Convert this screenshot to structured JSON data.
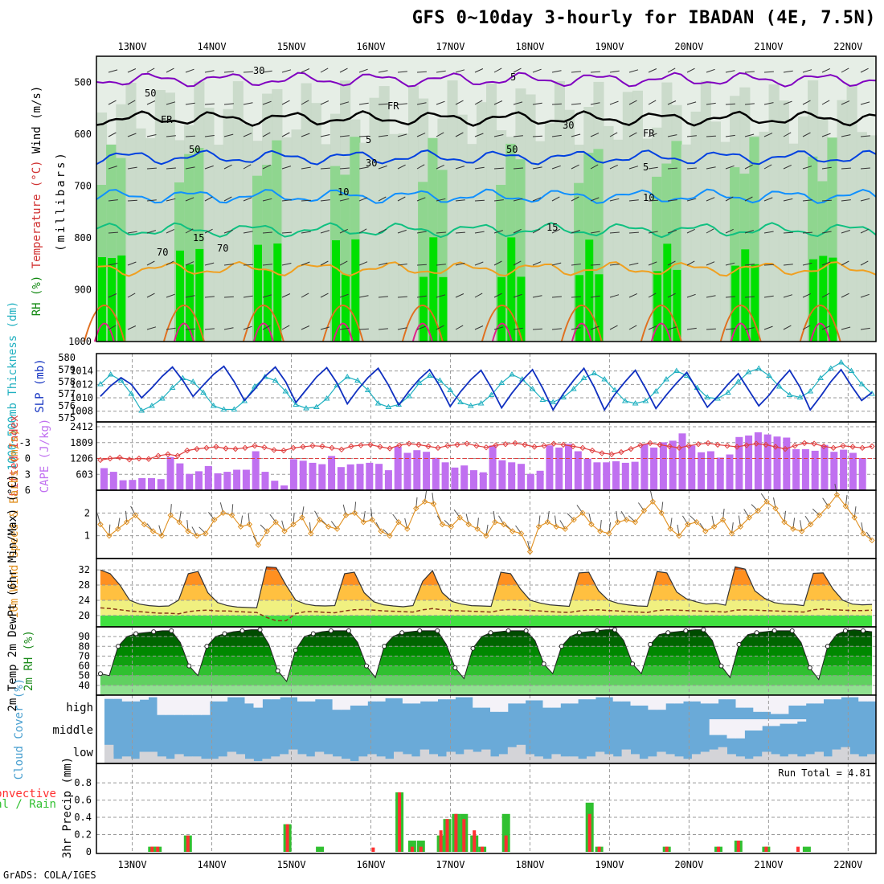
{
  "title": "GFS 0~10day 3-hourly for IBADAN (4E, 7.5N)",
  "credit": "GrADS: COLA/IGES",
  "colors": {
    "frame": "#000000",
    "grid": "#9a9a9a",
    "rh_light": "#c8d8c8",
    "rh_mid": "#8fd68f",
    "rh_high": "#00e000",
    "freeze": "#000000",
    "temp_5": "#8000c0",
    "temp_5b": "#0040e0",
    "temp_10": "#1090ff",
    "temp_15": "#10c080",
    "temp_20": "#f0a020",
    "thickness": "#20b0c0",
    "slp": "#1030c0",
    "lifted": "#e04040",
    "cape": "#c070f0",
    "wind10": "#e09020",
    "temp2m": "#ff6a00",
    "rh2m": "#1a8a1a",
    "cloud": "#6aaad8",
    "precip_total": "#30c030",
    "precip_conv": "#ff3030"
  },
  "chart_data": [
    {
      "type": "heatmap",
      "name": "upper-air cross-section",
      "dates": [
        "13NOV",
        "14NOV",
        "15NOV",
        "16NOV",
        "17NOV",
        "18NOV",
        "19NOV",
        "20NOV",
        "21NOV",
        "22NOV"
      ],
      "ylabel_main": "(millibars)",
      "ylabel_parts": {
        "rh": "RH (%)",
        "temp": "Temperature (°C)",
        "wind": "Wind (m/s)"
      },
      "y_ticks": [
        500,
        600,
        700,
        800,
        900,
        1000
      ],
      "ylim": [
        450,
        1000
      ],
      "contour_labels": [
        "5",
        "FR",
        "FR",
        "FR",
        "5",
        "5",
        "10",
        "10",
        "15",
        "15",
        "30",
        "30",
        "30",
        "50",
        "50",
        "50",
        "70",
        "70"
      ],
      "isotherm_levels": {
        "5_upper": 495,
        "FR": 570,
        "5": 645,
        "10": 720,
        "15": 785,
        "20": 860
      }
    },
    {
      "type": "line",
      "name": "thickness and slp",
      "ylabel_left": "1000~500mb Thickness (dm)",
      "ylabel_right": "SLP (mb)",
      "left_ticks": [
        575,
        576,
        577,
        578,
        579,
        580
      ],
      "right_ticks": [
        1008,
        1010,
        1012,
        1014
      ],
      "thickness_series": [
        577.8,
        578.6,
        578.1,
        577.0,
        575.6,
        576.0,
        576.6,
        577.5,
        578.3,
        578.0,
        577.1,
        576.0,
        575.7,
        575.7,
        576.4,
        577.6,
        578.4,
        578.1,
        577.2,
        576.1,
        575.8,
        575.9,
        576.6,
        577.7,
        578.4,
        578.1,
        577.3,
        576.2,
        575.9,
        576.1,
        576.8,
        577.9,
        578.5,
        578.1,
        577.3,
        576.3,
        576.0,
        576.2,
        576.9,
        577.9,
        578.6,
        578.2,
        577.4,
        576.5,
        576.3,
        576.7,
        577.4,
        578.3,
        578.7,
        578.2,
        577.3,
        576.4,
        576.2,
        576.4,
        577.2,
        578.2,
        578.9,
        578.5,
        577.5,
        576.7,
        576.6,
        577.1,
        578.0,
        578.8,
        579.1,
        578.5,
        577.6,
        576.9,
        576.7,
        577.2,
        578.3,
        579.1,
        579.6,
        578.9,
        577.8,
        577.0
      ],
      "slp_series": [
        1010.2,
        1011.8,
        1013.0,
        1012.0,
        1010.0,
        1011.5,
        1013.2,
        1014.6,
        1012.6,
        1010.2,
        1011.9,
        1013.5,
        1014.7,
        1012.4,
        1009.6,
        1011.3,
        1013.2,
        1014.6,
        1012.4,
        1009.3,
        1011.2,
        1013.1,
        1014.5,
        1012.2,
        1009.1,
        1011.2,
        1013.0,
        1014.4,
        1011.9,
        1008.9,
        1011.0,
        1012.8,
        1014.2,
        1011.7,
        1008.7,
        1010.9,
        1012.7,
        1014.1,
        1011.5,
        1008.5,
        1010.7,
        1012.6,
        1014.2,
        1011.4,
        1008.2,
        1010.6,
        1012.6,
        1014.4,
        1011.6,
        1008.2,
        1010.5,
        1012.4,
        1014.1,
        1011.4,
        1008.4,
        1010.4,
        1012.2,
        1013.8,
        1011.2,
        1008.6,
        1010.2,
        1012.0,
        1013.6,
        1011.2,
        1008.8,
        1010.4,
        1012.4,
        1014.1,
        1011.6,
        1008.2,
        1010.2,
        1012.4,
        1014.2,
        1011.8,
        1009.6,
        1010.8
      ]
    },
    {
      "type": "bar",
      "name": "lifted index and cape",
      "ylabel_left": "Lifted Index",
      "ylabel_right": "CAPE (J/kg)",
      "left_ticks": [
        "-3",
        "0",
        "3",
        "6"
      ],
      "right_ticks": [
        "603",
        "1206",
        "1809",
        "2412"
      ],
      "cape_values": [
        840,
        700,
        380,
        390,
        460,
        460,
        420,
        1260,
        1020,
        620,
        720,
        920,
        640,
        700,
        780,
        780,
        1480,
        700,
        360,
        180,
        1180,
        1120,
        1040,
        990,
        1300,
        880,
        980,
        1000,
        1040,
        1000,
        760,
        1660,
        1420,
        1520,
        1460,
        1230,
        1060,
        860,
        940,
        760,
        680,
        1700,
        1140,
        1060,
        1000,
        620,
        740,
        1700,
        1620,
        1760,
        1480,
        1200,
        1060,
        1060,
        1100,
        1040,
        1080,
        1760,
        1620,
        1820,
        1880,
        2160,
        1700,
        1440,
        1480,
        1240,
        1360,
        2020,
        2080,
        2200,
        2120,
        2040,
        2000,
        1560,
        1560,
        1500,
        1720,
        1460,
        1540,
        1420,
        1220
      ],
      "lifted_index": [
        0.3,
        0.0,
        -0.2,
        0.2,
        0.0,
        0.1,
        -0.5,
        -0.8,
        -0.5,
        -1.5,
        -1.8,
        -2.0,
        -2.2,
        -1.9,
        -1.8,
        -2.0,
        -2.4,
        -2.1,
        -1.6,
        -1.5,
        -2.0,
        -2.2,
        -2.4,
        -2.3,
        -2.0,
        -1.7,
        -2.3,
        -2.5,
        -2.6,
        -2.2,
        -1.9,
        -2.5,
        -2.8,
        -2.6,
        -2.3,
        -2.0,
        -2.4,
        -2.6,
        -2.8,
        -2.4,
        -2.1,
        -2.5,
        -2.7,
        -2.9,
        -2.6,
        -2.2,
        -2.4,
        -2.8,
        -2.6,
        -2.3,
        -2.0,
        -1.5,
        -1.0,
        -0.8,
        -1.2,
        -1.8,
        -2.5,
        -2.9,
        -2.6,
        -2.3,
        -2.0,
        -2.4,
        -2.7,
        -2.9,
        -2.6,
        -2.4,
        -2.2,
        -2.5,
        -2.8,
        -2.6,
        -2.2,
        -1.8,
        -2.4,
        -2.9,
        -2.8,
        -2.3,
        -2.0,
        -2.4,
        -2.2,
        -2.0,
        -2.3
      ]
    },
    {
      "type": "line",
      "name": "10m wind",
      "ylabel": "10m Wind Speed & Barbs (m/s)",
      "ticks": [
        "1",
        "2"
      ],
      "ylim": [
        0.0,
        3.0
      ],
      "values": [
        1.5,
        1.0,
        1.3,
        1.6,
        1.9,
        1.5,
        1.2,
        1.0,
        1.9,
        1.6,
        1.2,
        1.0,
        1.1,
        1.7,
        2.0,
        1.9,
        1.4,
        1.5,
        0.6,
        1.2,
        1.6,
        1.2,
        1.5,
        1.8,
        1.1,
        1.7,
        1.4,
        1.3,
        1.9,
        2.0,
        1.6,
        1.7,
        1.2,
        1.0,
        1.6,
        1.3,
        2.2,
        2.5,
        2.4,
        1.5,
        1.4,
        1.8,
        1.5,
        1.3,
        1.0,
        1.6,
        1.5,
        1.2,
        1.1,
        0.3,
        1.4,
        1.6,
        1.4,
        1.3,
        1.7,
        2.0,
        1.5,
        1.2,
        1.1,
        1.6,
        1.7,
        1.6,
        2.1,
        2.5,
        2.0,
        1.3,
        1.0,
        1.5,
        1.6,
        1.2,
        1.4,
        1.7,
        1.1,
        1.4,
        1.8,
        2.1,
        2.5,
        2.2,
        1.6,
        1.3,
        1.2,
        1.5,
        1.9,
        2.3,
        2.8,
        2.3,
        1.8,
        1.1,
        0.8
      ]
    },
    {
      "type": "area",
      "name": "2m temperature",
      "ylabel": "2m Temp 2m DewPt (6hr Min/Max) (°C)",
      "ticks": [
        "20",
        "24",
        "28",
        "32"
      ],
      "ylim": [
        17,
        35
      ],
      "temp": [
        32,
        31,
        28,
        24,
        23,
        22.6,
        22.4,
        22.5,
        24,
        31,
        31.6,
        26,
        23.4,
        22.6,
        22.2,
        22.1,
        22,
        32.8,
        32.6,
        28,
        24,
        23,
        22.6,
        22.5,
        22.6,
        31,
        31.4,
        26,
        23.6,
        22.8,
        22.5,
        22.3,
        22.6,
        29,
        31.8,
        26,
        23.7,
        23,
        22.6,
        22.5,
        22.4,
        31.4,
        31,
        27,
        24,
        23.3,
        22.8,
        22.6,
        22.4,
        31.2,
        31.4,
        26.5,
        24,
        23.2,
        22.8,
        22.5,
        22.4,
        31.6,
        31.2,
        26.2,
        24.4,
        23.6,
        23,
        23.2,
        22.7,
        32.8,
        32.2,
        26.5,
        24.5,
        23.4,
        23,
        22.9,
        22.6,
        31.1,
        31.2,
        27,
        24,
        23,
        22.8,
        22.9
      ],
      "dewpoint": [
        22,
        21.8,
        21.5,
        21.2,
        21,
        20.8,
        20.6,
        20.6,
        20.4,
        21,
        21.3,
        21.4,
        21.2,
        21.2,
        21,
        20.9,
        20.8,
        19.5,
        18.6,
        18.6,
        20.5,
        21,
        21,
        20.8,
        20.7,
        21.2,
        21.5,
        21.6,
        21.4,
        21.2,
        21.1,
        21.0,
        20.9,
        21.5,
        21.8,
        21.5,
        21.3,
        21.2,
        21.1,
        21.0,
        20.9,
        21.4,
        21.6,
        21.5,
        21.3,
        21.2,
        21.0,
        20.9,
        20.8,
        21.2,
        21.4,
        21.5,
        21.3,
        21.2,
        21.0,
        20.9,
        20.8,
        21.3,
        21.5,
        21.4,
        21.3,
        21.2,
        21.1,
        21.0,
        20.9,
        21.4,
        21.5,
        21.4,
        21.3,
        21.2,
        21.1,
        21.0,
        20.9,
        21.5,
        21.7,
        21.5,
        21.4,
        21.3,
        21.3,
        21.4
      ]
    },
    {
      "type": "area",
      "name": "2m relative humidity",
      "ylabel": "2m RH (%)",
      "ticks": [
        "40",
        "50",
        "60",
        "70",
        "80",
        "90"
      ],
      "ylim": [
        30,
        100
      ],
      "values": [
        52,
        50,
        80,
        90,
        93,
        94,
        95,
        96,
        96,
        84,
        60,
        50,
        80,
        90,
        93,
        95,
        96,
        97,
        97,
        82,
        55,
        44,
        76,
        90,
        93,
        95,
        96,
        96,
        96,
        84,
        60,
        48,
        80,
        90,
        94,
        95,
        96,
        96,
        96,
        82,
        58,
        47,
        78,
        90,
        94,
        95,
        96,
        96,
        96,
        86,
        62,
        52,
        80,
        90,
        94,
        95,
        96,
        97,
        97,
        86,
        62,
        52,
        82,
        92,
        94,
        95,
        96,
        97,
        97,
        86,
        60,
        48,
        82,
        92,
        94,
        95,
        96,
        96,
        96,
        84,
        58,
        46,
        80,
        92,
        96,
        97,
        96,
        95
      ]
    },
    {
      "type": "area",
      "name": "cloud cover",
      "ylabel": "Cloud Cover (%)",
      "layer_labels": [
        "high",
        "middle",
        "low"
      ],
      "high_clear": [
        18,
        18,
        30,
        30,
        22,
        10,
        95,
        95,
        95,
        95,
        95,
        95,
        30,
        30,
        10,
        10,
        40,
        60,
        20,
        20,
        10,
        10,
        30,
        30,
        20,
        20,
        70,
        70,
        50,
        50,
        30,
        30,
        15,
        15,
        40,
        40,
        30,
        30,
        20,
        20,
        10,
        10,
        60,
        60,
        80,
        80,
        40,
        40,
        25,
        25,
        60,
        60,
        40,
        40,
        20,
        20,
        10,
        10,
        30,
        30,
        50,
        50,
        70,
        70,
        40,
        40,
        30,
        30,
        40,
        40,
        20,
        20,
        60,
        60,
        80,
        80,
        90,
        90,
        50,
        50,
        40,
        40,
        20,
        20,
        10,
        10,
        30,
        30
      ],
      "middle_clear": [
        0,
        0,
        0,
        0,
        0,
        0,
        0,
        0,
        0,
        0,
        0,
        0,
        0,
        0,
        0,
        0,
        0,
        0,
        0,
        0,
        0,
        0,
        0,
        0,
        0,
        0,
        0,
        0,
        0,
        0,
        0,
        0,
        0,
        0,
        0,
        0,
        0,
        0,
        0,
        0,
        0,
        0,
        0,
        0,
        0,
        0,
        0,
        0,
        0,
        0,
        0,
        0,
        0,
        0,
        0,
        0,
        0,
        0,
        0,
        0,
        0,
        0,
        0,
        0,
        0,
        0,
        0,
        0,
        0,
        70,
        70,
        85,
        85,
        50,
        50,
        30,
        30,
        20,
        20,
        10,
        0,
        0,
        0,
        0,
        0,
        0,
        0,
        0,
        0
      ],
      "low": [
        40,
        20,
        30,
        20,
        50,
        50,
        30,
        20,
        40,
        30,
        30,
        20,
        20,
        30,
        50,
        40,
        20,
        10,
        20,
        30,
        40,
        60,
        40,
        30,
        50,
        40,
        30,
        20,
        10,
        30,
        40,
        30,
        20,
        50,
        40,
        30,
        60,
        40,
        30,
        50,
        40,
        60,
        50,
        60,
        30,
        40,
        70,
        80,
        40,
        30,
        20,
        40,
        30,
        30,
        20,
        30,
        50,
        40,
        30,
        60,
        40,
        20,
        30,
        50,
        40,
        30,
        20,
        40,
        50,
        60,
        70,
        40,
        30,
        20,
        30,
        50,
        40,
        30,
        40,
        30,
        40,
        50,
        30,
        60,
        70,
        40,
        30,
        40,
        80
      ]
    },
    {
      "type": "bar",
      "name": "3hr precip",
      "ylabel_parts": {
        "total": "Total / Rain",
        "conv": "Convective",
        "units": "3hr Precip (mm)"
      },
      "run_total": "Run Total = 4.81",
      "ticks": [
        "0",
        "0.2",
        "0.4",
        "0.6",
        "0.8"
      ],
      "ylim": [
        0,
        0.95
      ],
      "bars": [
        {
          "day": 13.25,
          "total": 0.06,
          "conv": 0.06
        },
        {
          "day": 13.32,
          "total": 0.06,
          "conv": 0.06
        },
        {
          "day": 13.7,
          "total": 0.19,
          "conv": 0.19
        },
        {
          "day": 14.95,
          "total": 0.32,
          "conv": 0.32
        },
        {
          "day": 15.36,
          "total": 0.06,
          "conv": 0.0
        },
        {
          "day": 16.03,
          "total": 0.0,
          "conv": 0.05
        },
        {
          "day": 16.36,
          "total": 0.69,
          "conv": 0.69
        },
        {
          "day": 16.52,
          "total": 0.13,
          "conv": 0.06
        },
        {
          "day": 16.63,
          "total": 0.13,
          "conv": 0.06
        },
        {
          "day": 16.88,
          "total": 0.19,
          "conv": 0.25
        },
        {
          "day": 16.96,
          "total": 0.38,
          "conv": 0.38
        },
        {
          "day": 17.07,
          "total": 0.44,
          "conv": 0.44
        },
        {
          "day": 17.17,
          "total": 0.44,
          "conv": 0.38
        },
        {
          "day": 17.3,
          "total": 0.19,
          "conv": 0.25
        },
        {
          "day": 17.4,
          "total": 0.06,
          "conv": 0.06
        },
        {
          "day": 17.7,
          "total": 0.44,
          "conv": 0.19
        },
        {
          "day": 18.75,
          "total": 0.57,
          "conv": 0.44
        },
        {
          "day": 18.87,
          "total": 0.06,
          "conv": 0.06
        },
        {
          "day": 19.72,
          "total": 0.06,
          "conv": 0.06
        },
        {
          "day": 20.37,
          "total": 0.06,
          "conv": 0.06
        },
        {
          "day": 20.62,
          "total": 0.13,
          "conv": 0.13
        },
        {
          "day": 20.97,
          "total": 0.06,
          "conv": 0.06
        },
        {
          "day": 21.37,
          "total": 0.0,
          "conv": 0.06
        },
        {
          "day": 21.48,
          "total": 0.06,
          "conv": 0.0
        }
      ]
    }
  ]
}
